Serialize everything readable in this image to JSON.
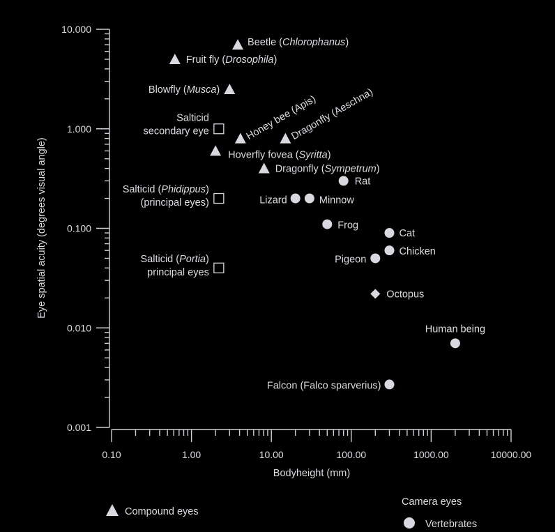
{
  "chart_data": {
    "type": "scatter",
    "xlabel": "Bodyheight (mm)",
    "ylabel": "Eye spatial acuity (degrees visual angle)",
    "xscale": "log",
    "yscale": "log",
    "xlim": [
      0.1,
      10000
    ],
    "ylim": [
      0.001,
      10
    ],
    "xticks": [
      "0.10",
      "1.00",
      "10.00",
      "100.00",
      "1000.00",
      "10000.00"
    ],
    "yticks": [
      "0.001",
      "0.010",
      "0.100",
      "1.000",
      "10.000"
    ],
    "points": [
      {
        "id": "beetle",
        "kind": "compound",
        "x": 3.8,
        "y": 7.0,
        "label": [
          [
            {
              "t": "Beetle ("
            },
            {
              "t": "Chlorophanus",
              "i": true
            },
            {
              "t": ")"
            }
          ]
        ]
      },
      {
        "id": "fruit-fly",
        "kind": "compound",
        "x": 0.62,
        "y": 5.0,
        "label": [
          [
            {
              "t": "Fruit fly ("
            },
            {
              "t": "Drosophila",
              "i": true
            },
            {
              "t": ")"
            }
          ]
        ]
      },
      {
        "id": "blowfly",
        "kind": "compound",
        "x": 3.0,
        "y": 2.5,
        "label": [
          [
            {
              "t": "Blowfly ("
            },
            {
              "t": "Musca",
              "i": true
            },
            {
              "t": ")"
            }
          ]
        ]
      },
      {
        "id": "honey-bee",
        "kind": "compound",
        "x": 4.1,
        "y": 0.8,
        "label": [
          [
            {
              "t": "Honey bee (Apis)"
            }
          ]
        ]
      },
      {
        "id": "dragonfly-aeschna",
        "kind": "compound",
        "x": 15,
        "y": 0.8,
        "label": [
          [
            {
              "t": "Dragonfly (Aeschna)"
            }
          ]
        ]
      },
      {
        "id": "hoverfly",
        "kind": "compound",
        "x": 2.0,
        "y": 0.6,
        "label": [
          [
            {
              "t": "Hoverfly fovea ("
            },
            {
              "t": "Syritta",
              "i": true
            },
            {
              "t": ")"
            }
          ]
        ]
      },
      {
        "id": "dragonfly-sympetrum",
        "kind": "compound",
        "x": 8.1,
        "y": 0.4,
        "label": [
          [
            {
              "t": "Dragonfly ("
            },
            {
              "t": "Sympetrum",
              "i": true
            },
            {
              "t": ")"
            }
          ]
        ]
      },
      {
        "id": "salticid-secondary",
        "kind": "salticid",
        "x": 2.2,
        "y": 1.0,
        "label": [
          [
            {
              "t": "Salticid"
            }
          ],
          [
            {
              "t": "secondary eye"
            }
          ]
        ]
      },
      {
        "id": "salticid-phidippus",
        "kind": "salticid",
        "x": 2.2,
        "y": 0.2,
        "label": [
          [
            {
              "t": "Salticid ("
            },
            {
              "t": "Phidippus",
              "i": true
            },
            {
              "t": ")"
            }
          ],
          [
            {
              "t": "(principal eyes)"
            }
          ]
        ]
      },
      {
        "id": "salticid-portia",
        "kind": "salticid",
        "x": 2.2,
        "y": 0.04,
        "label": [
          [
            {
              "t": "Salticid ("
            },
            {
              "t": "Portia",
              "i": true
            },
            {
              "t": ")"
            }
          ],
          [
            {
              "t": "principal eyes"
            }
          ]
        ]
      },
      {
        "id": "rat",
        "kind": "vertebrate",
        "x": 80,
        "y": 0.3,
        "label": [
          [
            {
              "t": "Rat"
            }
          ]
        ]
      },
      {
        "id": "lizard",
        "kind": "vertebrate",
        "x": 20,
        "y": 0.2,
        "label": [
          [
            {
              "t": "Lizard"
            }
          ]
        ]
      },
      {
        "id": "minnow",
        "kind": "vertebrate",
        "x": 30,
        "y": 0.2,
        "label": [
          [
            {
              "t": "Minnow"
            }
          ]
        ]
      },
      {
        "id": "frog",
        "kind": "vertebrate",
        "x": 50,
        "y": 0.11,
        "label": [
          [
            {
              "t": "Frog"
            }
          ]
        ]
      },
      {
        "id": "cat",
        "kind": "vertebrate",
        "x": 300,
        "y": 0.09,
        "label": [
          [
            {
              "t": "Cat"
            }
          ]
        ]
      },
      {
        "id": "chicken",
        "kind": "vertebrate",
        "x": 300,
        "y": 0.06,
        "label": [
          [
            {
              "t": "Chicken"
            }
          ]
        ]
      },
      {
        "id": "pigeon",
        "kind": "vertebrate",
        "x": 200,
        "y": 0.05,
        "label": [
          [
            {
              "t": "Pigeon"
            }
          ]
        ]
      },
      {
        "id": "octopus",
        "kind": "cephalopod",
        "x": 200,
        "y": 0.022,
        "label": [
          [
            {
              "t": "Octopus"
            }
          ]
        ]
      },
      {
        "id": "human",
        "kind": "vertebrate",
        "x": 2000,
        "y": 0.007,
        "label": [
          [
            {
              "t": "Human being"
            }
          ]
        ]
      },
      {
        "id": "falcon",
        "kind": "vertebrate",
        "x": 300,
        "y": 0.0027,
        "label": [
          [
            {
              "t": "Falcon (Falco sparverius)"
            }
          ]
        ]
      }
    ],
    "legend": {
      "compound": "Compound eyes",
      "camera_heading": "Camera eyes",
      "vertebrates": "Vertebrates"
    }
  }
}
